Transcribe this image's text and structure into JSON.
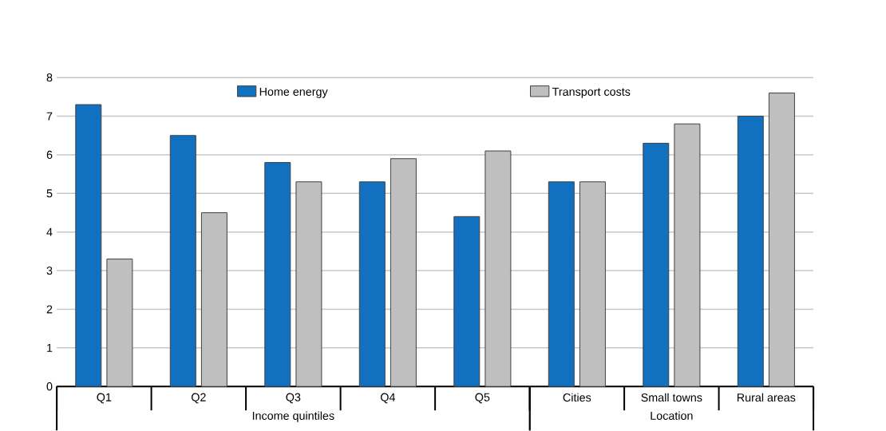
{
  "chart_data": {
    "type": "bar",
    "categories": [
      "Q1",
      "Q2",
      "Q3",
      "Q4",
      "Q5",
      "Cities",
      "Small towns",
      "Rural areas"
    ],
    "series": [
      {
        "name": "Home energy",
        "color": "#1170c0",
        "values": [
          7.3,
          6.5,
          5.8,
          5.3,
          4.4,
          5.3,
          6.3,
          7.0
        ]
      },
      {
        "name": "Transport costs",
        "color": "#bfbfbf",
        "values": [
          3.3,
          4.5,
          5.3,
          5.9,
          6.1,
          5.3,
          6.8,
          7.6
        ]
      }
    ],
    "annotations": [
      "Income quintiles",
      "Location"
    ],
    "ylim": [
      0,
      8
    ],
    "yticks": [
      0,
      1,
      2,
      3,
      4,
      5,
      6,
      7,
      8
    ],
    "grid": "y",
    "legend": "top"
  }
}
